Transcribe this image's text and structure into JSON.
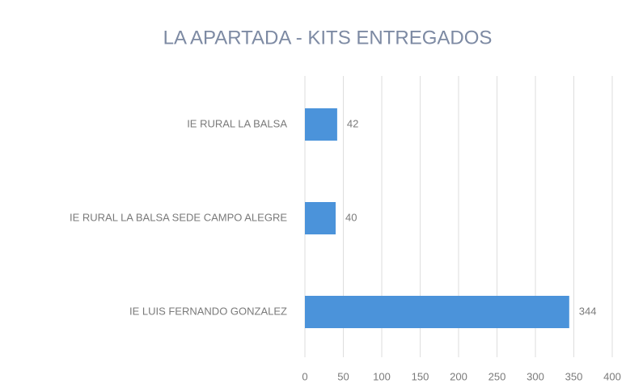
{
  "chart_data": {
    "type": "bar",
    "orientation": "horizontal",
    "title": "LA APARTADA - KITS ENTREGADOS",
    "categories": [
      "IE RURAL LA BALSA",
      "IE RURAL LA BALSA SEDE CAMPO ALEGRE",
      "IE LUIS FERNANDO GONZALEZ"
    ],
    "values": [
      42,
      40,
      344
    ],
    "color": "#4b93da",
    "xlim": [
      0,
      400
    ],
    "xticks": [
      0,
      50,
      100,
      150,
      200,
      250,
      300,
      350,
      400
    ],
    "grid": true
  }
}
